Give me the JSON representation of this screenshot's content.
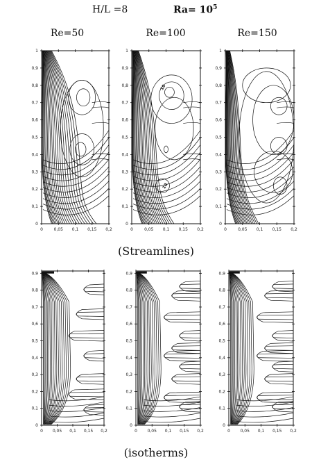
{
  "header": {
    "aspect_ratio": "H/L =8",
    "rayleigh_prefix": "Ra= 10",
    "rayleigh_exponent": "5"
  },
  "columns": [
    "Re=50",
    "Re=100",
    "Re=150"
  ],
  "captions": {
    "streamlines": "(Streamlines)",
    "isotherms": "(isotherms)"
  },
  "axes": {
    "x_ticks": [
      "0",
      "0,05",
      "0,1",
      "0,15",
      "0,2"
    ],
    "y_ticks_streamlines": [
      "0",
      "0,1",
      "0,2",
      "0,3",
      "0,4",
      "0,5",
      "0,6",
      "0,7",
      "0,8",
      "0,9",
      "1"
    ],
    "y_ticks_isotherms": [
      "0",
      "0,1",
      "0,2",
      "0,3",
      "0,4",
      "0,5",
      "0,6",
      "0,7",
      "0,8",
      "0,9"
    ]
  },
  "contour_labels": {
    "re100_upper": "10",
    "re100_lower": "10"
  }
}
